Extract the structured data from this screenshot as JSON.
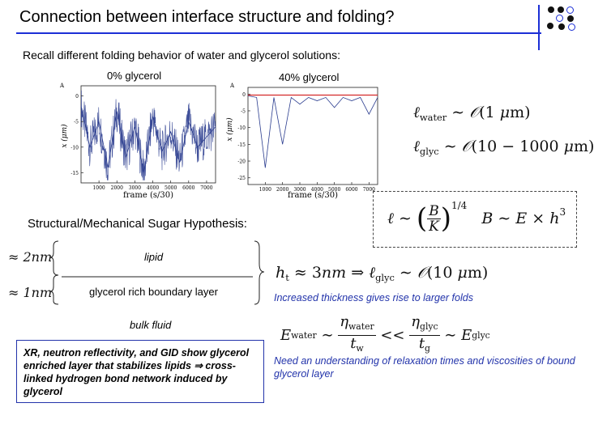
{
  "slide": {
    "title": "Connection between interface structure and folding?",
    "intro": "Recall different folding behavior of water and glycerol solutions:",
    "plot_left_label": "0% glycerol",
    "plot_right_label": "40% glycerol",
    "axis": {
      "xlabel": "frame (s/30)",
      "ylabel_left": "x (μm)",
      "ylabel_right": "x (μm)",
      "corner": "A",
      "x_ticks": [
        "1000",
        "2000",
        "3000",
        "4000",
        "5000",
        "6000",
        "7000"
      ],
      "y_ticks_left": [
        "0",
        "-5",
        "-10",
        "-15"
      ],
      "y_ticks_right": [
        "0",
        "-5",
        "-10",
        "-15",
        "-20",
        "-25"
      ]
    },
    "hypothesis": "Structural/Mechanical Sugar Hypothesis:",
    "layer_lipid": "lipid",
    "layer_glycerol": "glycerol rich boundary layer",
    "layer_bulk": "bulk fluid",
    "thickness_2nm": "≈ 2nm",
    "thickness_1nm": "≈ 1nm",
    "xr_text": "XR, neutron reflectivity, and GID show glycerol enriched layer that stabilizes lipids ⇒ cross-linked hydrogen bond network induced by glycerol",
    "note_thickness": "Increased thickness gives rise to larger folds",
    "note_relaxation": "Need an understanding of relaxation times and viscosities of bound glycerol layer"
  },
  "formulas": {
    "l_water": "ℓwater ∼ O(1 μm)",
    "l_glyc": "ℓglyc ∼ O(10 − 1000 μm)",
    "scaling": "ℓ ∼ (B/K)^1/4   B ∼ E × h^3",
    "h_t": "ht ≈ 3nm ⇒ ℓglyc ∼ O(10 μm)",
    "energy": "Ewater ∼ ηwater/tw << ηglyc/tg ∼ Eglyc"
  },
  "colors": {
    "accent_blue": "#1c2fd6",
    "trace_blue": "#2b3d8f",
    "trace_red": "#d42a2a",
    "note_blue": "#2233aa"
  },
  "chart_data": [
    {
      "type": "line",
      "title": "0% glycerol",
      "xlabel": "frame (s/30)",
      "ylabel": "x (μm)",
      "xlim": [
        0,
        7500
      ],
      "ylim": [
        -17,
        2
      ],
      "x_ticks": [
        1000,
        2000,
        3000,
        4000,
        5000,
        6000,
        7000
      ],
      "y_ticks": [
        0,
        -5,
        -10,
        -15
      ],
      "series": [
        {
          "x": [
            0,
            500,
            1000,
            1500,
            2000,
            2500,
            3000,
            3500,
            4000,
            4500,
            5000,
            5500,
            6000,
            6500,
            7000,
            7500
          ],
          "y": [
            -2,
            -10,
            -5,
            -14,
            -3,
            -12,
            -6,
            -15,
            -4,
            -11,
            -7,
            -13,
            -5,
            -10,
            -8,
            -6
          ]
        }
      ]
    },
    {
      "type": "line",
      "title": "40% glycerol",
      "xlabel": "frame (s/30)",
      "ylabel": "x (μm)",
      "xlim": [
        0,
        7500
      ],
      "ylim": [
        -27,
        2
      ],
      "x_ticks": [
        1000,
        2000,
        3000,
        4000,
        5000,
        6000,
        7000
      ],
      "y_ticks": [
        0,
        -5,
        -10,
        -15,
        -20,
        -25
      ],
      "series": [
        {
          "x": [
            0,
            500,
            1000,
            1500,
            2000,
            2500,
            3000,
            3500,
            4000,
            4500,
            5000,
            5500,
            6000,
            6500,
            7000,
            7500
          ],
          "y": [
            -0.5,
            -1,
            -22,
            -1,
            -15,
            -1,
            -3,
            -1,
            -2,
            -1,
            -4,
            -1,
            -2,
            -1,
            -6,
            -1
          ]
        },
        {
          "x": [
            0,
            7500
          ],
          "y": [
            -0.3,
            -0.3
          ]
        }
      ]
    }
  ]
}
